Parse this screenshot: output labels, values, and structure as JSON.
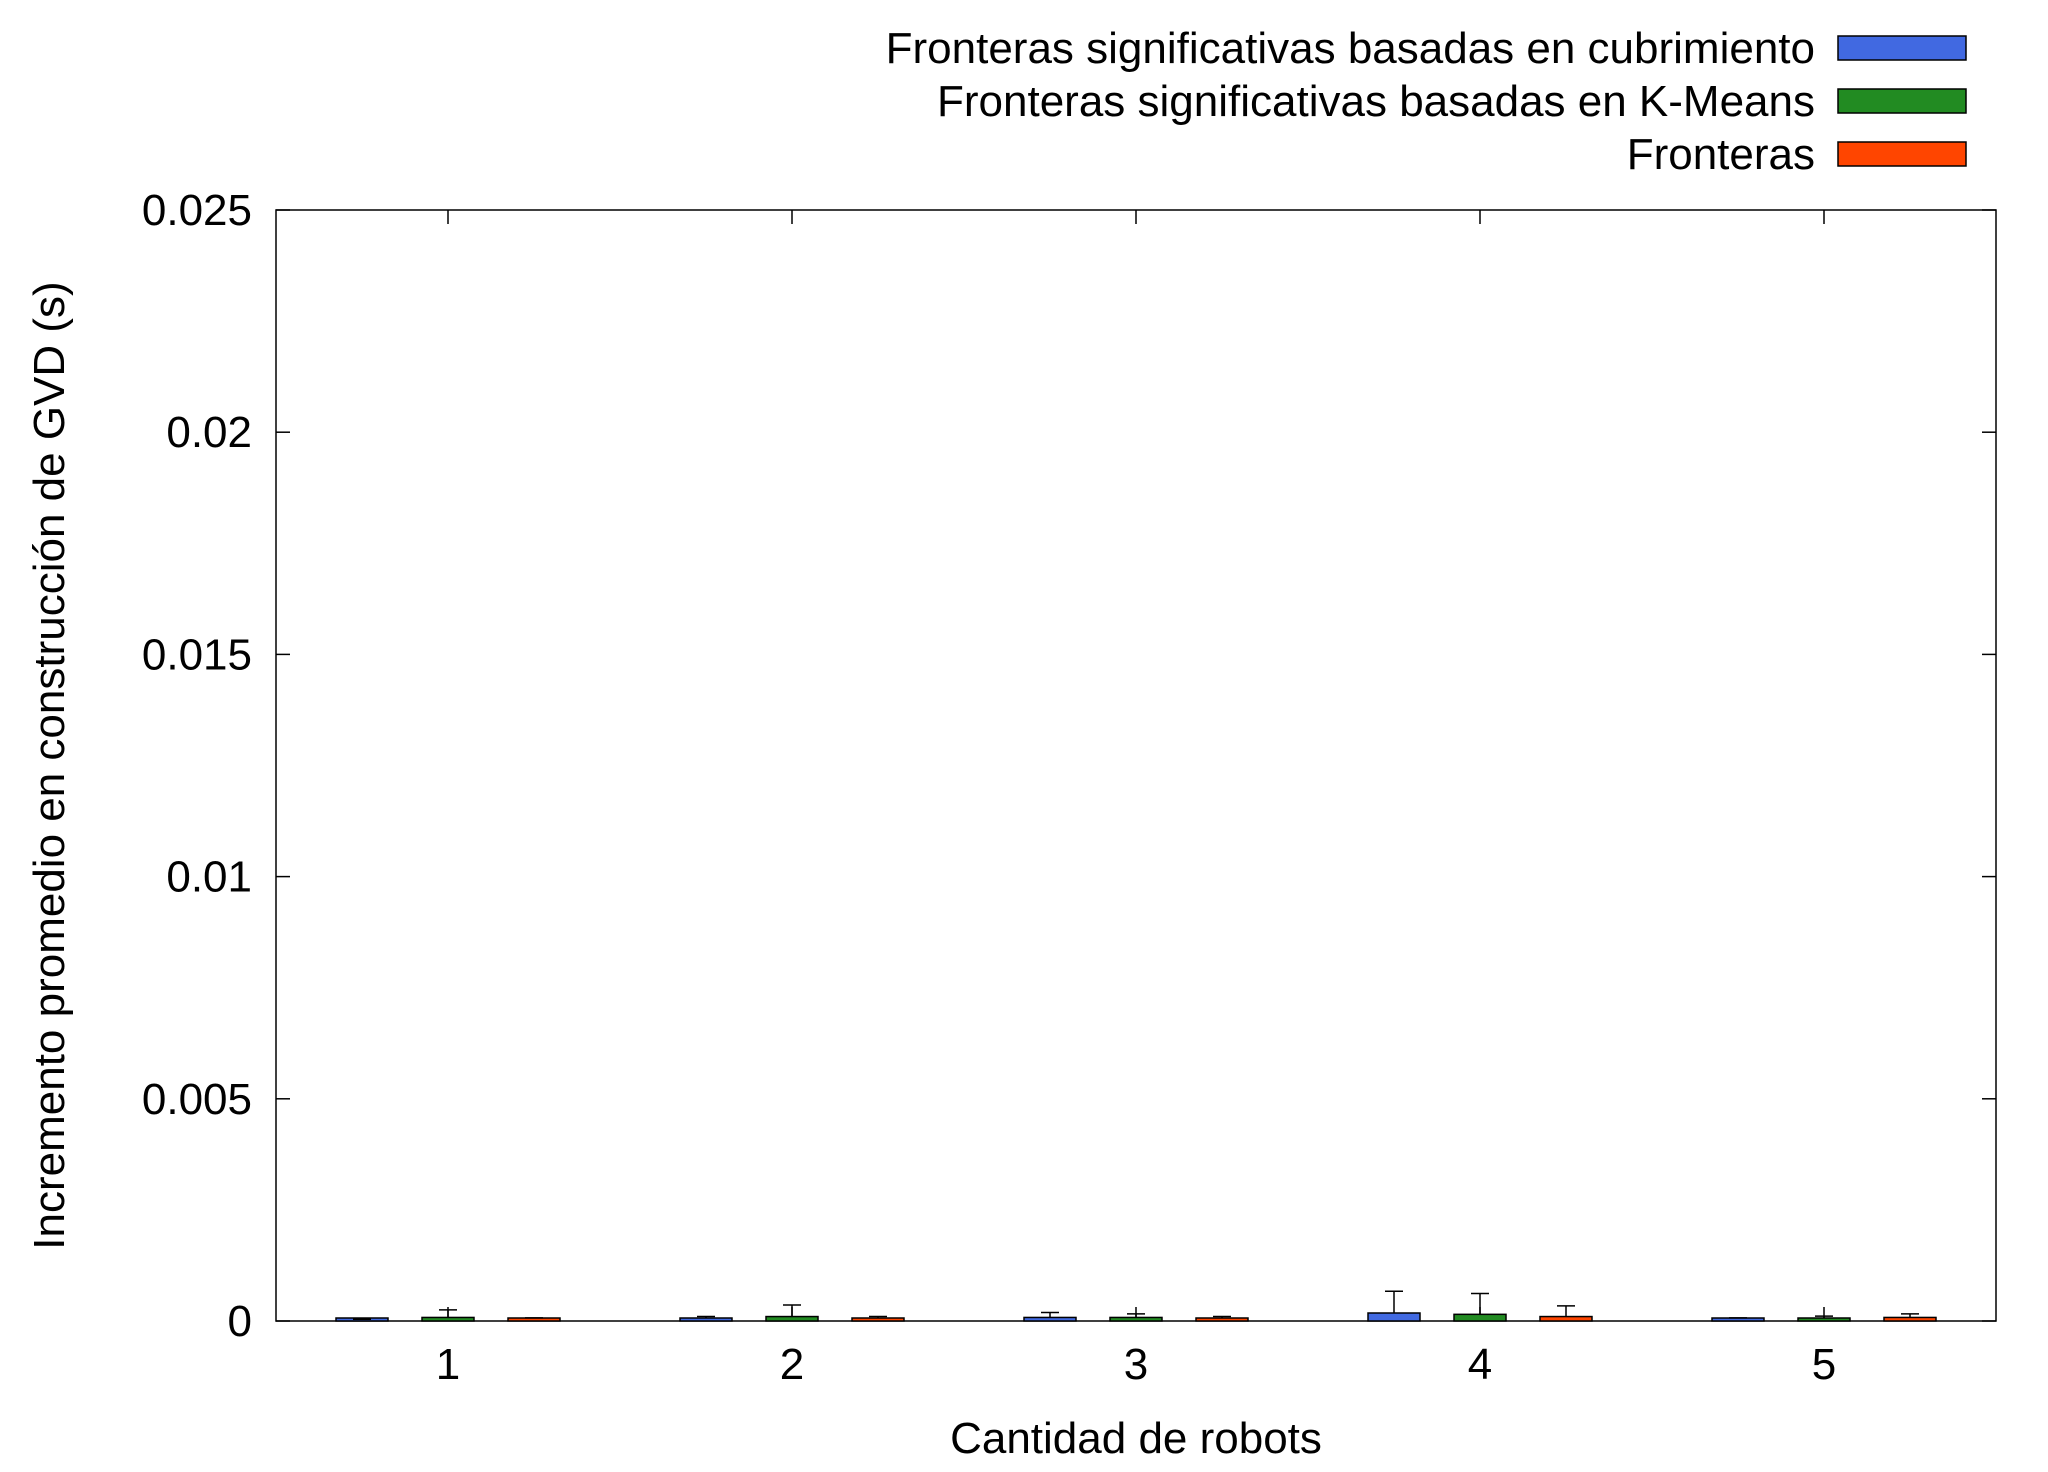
{
  "chart_data": {
    "type": "bar",
    "xlabel": "Cantidad de robots",
    "ylabel": "Incremento promedio en construcción de GVD (s)",
    "categories": [
      "1",
      "2",
      "3",
      "4",
      "5"
    ],
    "ylim": [
      0,
      0.025
    ],
    "yticks": [
      "0",
      "0.005",
      "0.01",
      "0.015",
      "0.02",
      "0.025"
    ],
    "ytick_values": [
      0,
      0.005,
      0.01,
      0.015,
      0.02,
      0.025
    ],
    "grid": false,
    "legend_position": "top-right (outside plot)",
    "series": [
      {
        "name": "Fronteras significativas basadas en cubrimiento",
        "color": "#4169e1",
        "values": [
          2e-05,
          6e-05,
          8e-05,
          0.00018,
          3e-05
        ],
        "error": [
          2e-05,
          4e-05,
          0.00011,
          0.00049,
          4e-05
        ]
      },
      {
        "name": "Fronteras significativas basadas en K-Means",
        "color": "#228b22",
        "values": [
          8e-05,
          0.0001,
          8e-05,
          0.00015,
          3e-05
        ],
        "error": [
          0.00017,
          0.00026,
          8e-05,
          0.00047,
          8e-05
        ]
      },
      {
        "name": "Fronteras",
        "color": "#ff4500",
        "values": [
          4e-05,
          5e-05,
          5e-05,
          0.0001,
          8e-05
        ],
        "error": [
          3e-05,
          5e-05,
          5e-05,
          0.00024,
          8e-05
        ]
      }
    ]
  }
}
